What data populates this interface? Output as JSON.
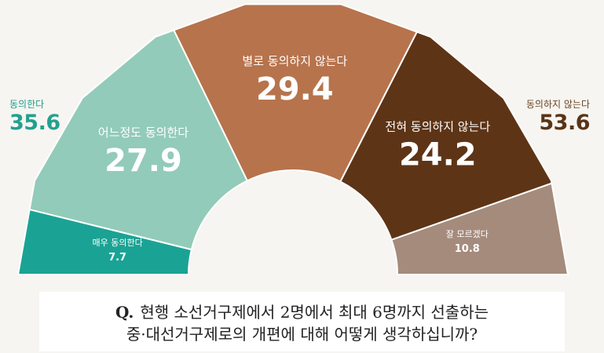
{
  "chart_data": {
    "type": "pie",
    "layout": "semicircle-donut",
    "categories": [
      "매우 동의한다",
      "어느정도 동의한다",
      "별로 동의하지 않는다",
      "전혀 동의하지 않는다",
      "잘 모르겠다"
    ],
    "values": [
      7.7,
      27.9,
      29.4,
      24.2,
      10.8
    ],
    "value_labels": [
      "7.7",
      "27.9",
      "29.4",
      "24.2",
      "10.8"
    ],
    "colors": [
      "#1aa394",
      "#92cbb9",
      "#b7734c",
      "#5e3416",
      "#a58b7c"
    ],
    "label_colors": [
      "#ffffff",
      "#ffffff",
      "#ffffff",
      "#ffffff",
      "#ffffff"
    ]
  },
  "summary": {
    "agree_label": "동의한다",
    "agree_value": "35.6",
    "disagree_label": "동의하지 않는다",
    "disagree_value": "53.6"
  },
  "question": {
    "prefix": "Q.",
    "line1": "현행 소선거구제에서 2명에서 최대 6명까지 선출하는",
    "line2": "중·대선거구제로의 개편에 대해 어떻게 생각하십니까?"
  }
}
